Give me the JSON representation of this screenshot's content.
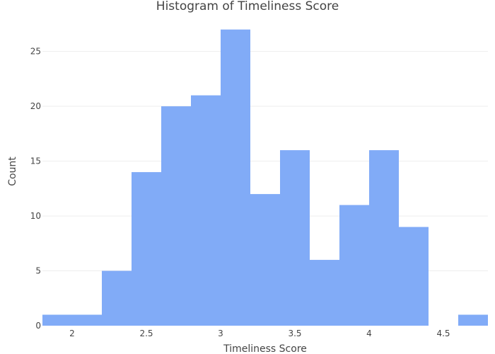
{
  "chart_data": {
    "type": "bar",
    "title": "Histogram of Timeliness Score",
    "xlabel": "Timeliness Score",
    "ylabel": "Count",
    "bins": [
      {
        "start": 1.8,
        "end": 2.0,
        "count": 1
      },
      {
        "start": 2.0,
        "end": 2.2,
        "count": 1
      },
      {
        "start": 2.2,
        "end": 2.4,
        "count": 5
      },
      {
        "start": 2.4,
        "end": 2.6,
        "count": 14
      },
      {
        "start": 2.6,
        "end": 2.8,
        "count": 20
      },
      {
        "start": 2.8,
        "end": 3.0,
        "count": 21
      },
      {
        "start": 3.0,
        "end": 3.2,
        "count": 27
      },
      {
        "start": 3.2,
        "end": 3.4,
        "count": 12
      },
      {
        "start": 3.4,
        "end": 3.6,
        "count": 16
      },
      {
        "start": 3.6,
        "end": 3.8,
        "count": 6
      },
      {
        "start": 3.8,
        "end": 4.0,
        "count": 11
      },
      {
        "start": 4.0,
        "end": 4.2,
        "count": 16
      },
      {
        "start": 4.2,
        "end": 4.4,
        "count": 9
      },
      {
        "start": 4.4,
        "end": 4.6,
        "count": 0
      },
      {
        "start": 4.6,
        "end": 4.8,
        "count": 1
      }
    ],
    "xlim": [
      1.8,
      4.8
    ],
    "ylim": [
      0,
      28.4
    ],
    "xticks": [
      2,
      2.5,
      3,
      3.5,
      4,
      4.5
    ],
    "xtick_labels": [
      "2",
      "2.5",
      "3",
      "3.5",
      "4",
      "4.5"
    ],
    "yticks": [
      0,
      5,
      10,
      15,
      20,
      25
    ],
    "ytick_labels": [
      "0",
      "5",
      "10",
      "15",
      "20",
      "25"
    ],
    "grid": true,
    "bar_color": "#7aa6f7"
  }
}
